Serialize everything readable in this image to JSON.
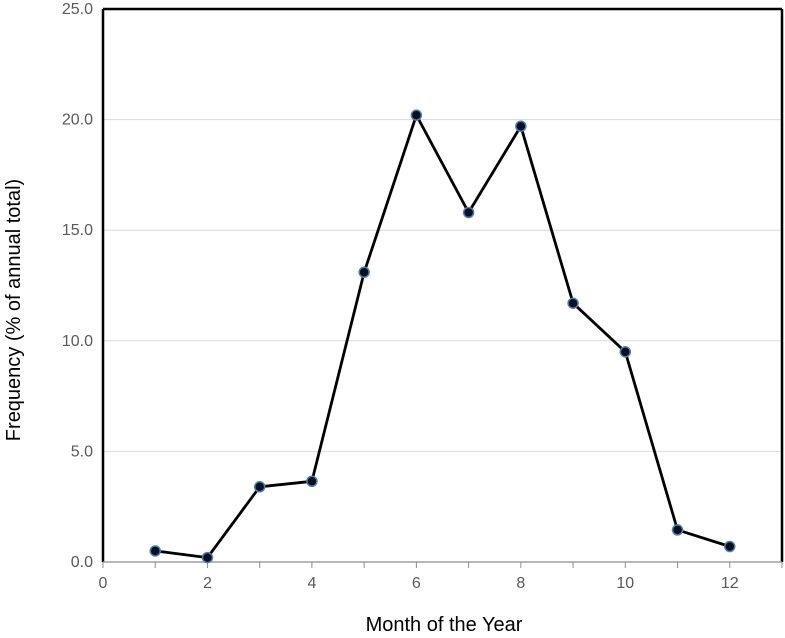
{
  "chart_data": {
    "type": "line",
    "title": "",
    "xlabel": "Month of the Year",
    "ylabel": "Frequency (% of annual total)",
    "xlim": [
      0,
      13
    ],
    "ylim": [
      0,
      25
    ],
    "x_ticks": [
      0,
      2,
      4,
      6,
      8,
      10,
      12
    ],
    "x_tick_labels": [
      "0",
      "2",
      "4",
      "6",
      "8",
      "10",
      "12"
    ],
    "y_ticks": [
      0,
      5,
      10,
      15,
      20,
      25
    ],
    "y_tick_labels": [
      "0.0",
      "5.0",
      "10.0",
      "15.0",
      "20.0",
      "25.0"
    ],
    "grid": "horizontal",
    "legend": "none",
    "series": [
      {
        "x": [
          1,
          2,
          3,
          4,
          5,
          6,
          7,
          8,
          9,
          10,
          11,
          12
        ],
        "values": [
          0.5,
          0.2,
          3.4,
          3.65,
          13.1,
          20.2,
          15.8,
          19.7,
          11.7,
          9.5,
          1.45,
          0.7
        ],
        "line_color": "#000000",
        "marker_fill": "#0a0f1e",
        "marker_edge": "#4a7fb8"
      }
    ]
  }
}
